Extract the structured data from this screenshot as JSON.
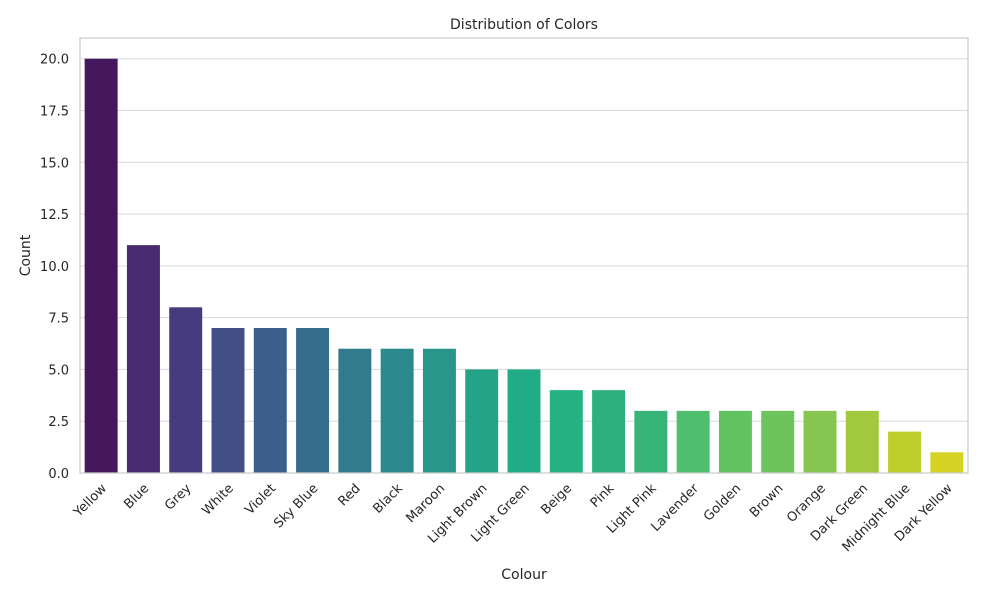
{
  "chart_data": {
    "type": "bar",
    "title": "Distribution of Colors",
    "xlabel": "Colour",
    "ylabel": "Count",
    "ylim": [
      0,
      21
    ],
    "yticks": [
      0.0,
      2.5,
      5.0,
      7.5,
      10.0,
      12.5,
      15.0,
      17.5,
      20.0
    ],
    "ytick_labels": [
      "0.0",
      "2.5",
      "5.0",
      "7.5",
      "10.0",
      "12.5",
      "15.0",
      "17.5",
      "20.0"
    ],
    "grid": "horizontal",
    "categories": [
      "Yellow",
      "Blue",
      "Grey",
      "White",
      "Violet",
      "Sky Blue",
      "Red",
      "Black",
      "Maroon",
      "Light Brown",
      "Light Green",
      "Beige",
      "Pink",
      "Light Pink",
      "Lavender",
      "Golden",
      "Brown",
      "Orange",
      "Dark Green",
      "Midnight Blue",
      "Dark Yellow"
    ],
    "values": [
      20,
      11,
      8,
      7,
      7,
      7,
      6,
      6,
      6,
      5,
      5,
      4,
      4,
      3,
      3,
      3,
      3,
      3,
      3,
      2,
      1
    ],
    "colors": [
      "#45175c",
      "#482a70",
      "#463c7d",
      "#424f86",
      "#3c5e8a",
      "#366c8c",
      "#317b8d",
      "#2c898c",
      "#28968b",
      "#24a487",
      "#21ab86",
      "#25b283",
      "#2cb17e",
      "#37b578",
      "#4fbe6f",
      "#61c260",
      "#6cc45a",
      "#87c551",
      "#a2c83e",
      "#bfcd2d",
      "#d6d324"
    ]
  }
}
